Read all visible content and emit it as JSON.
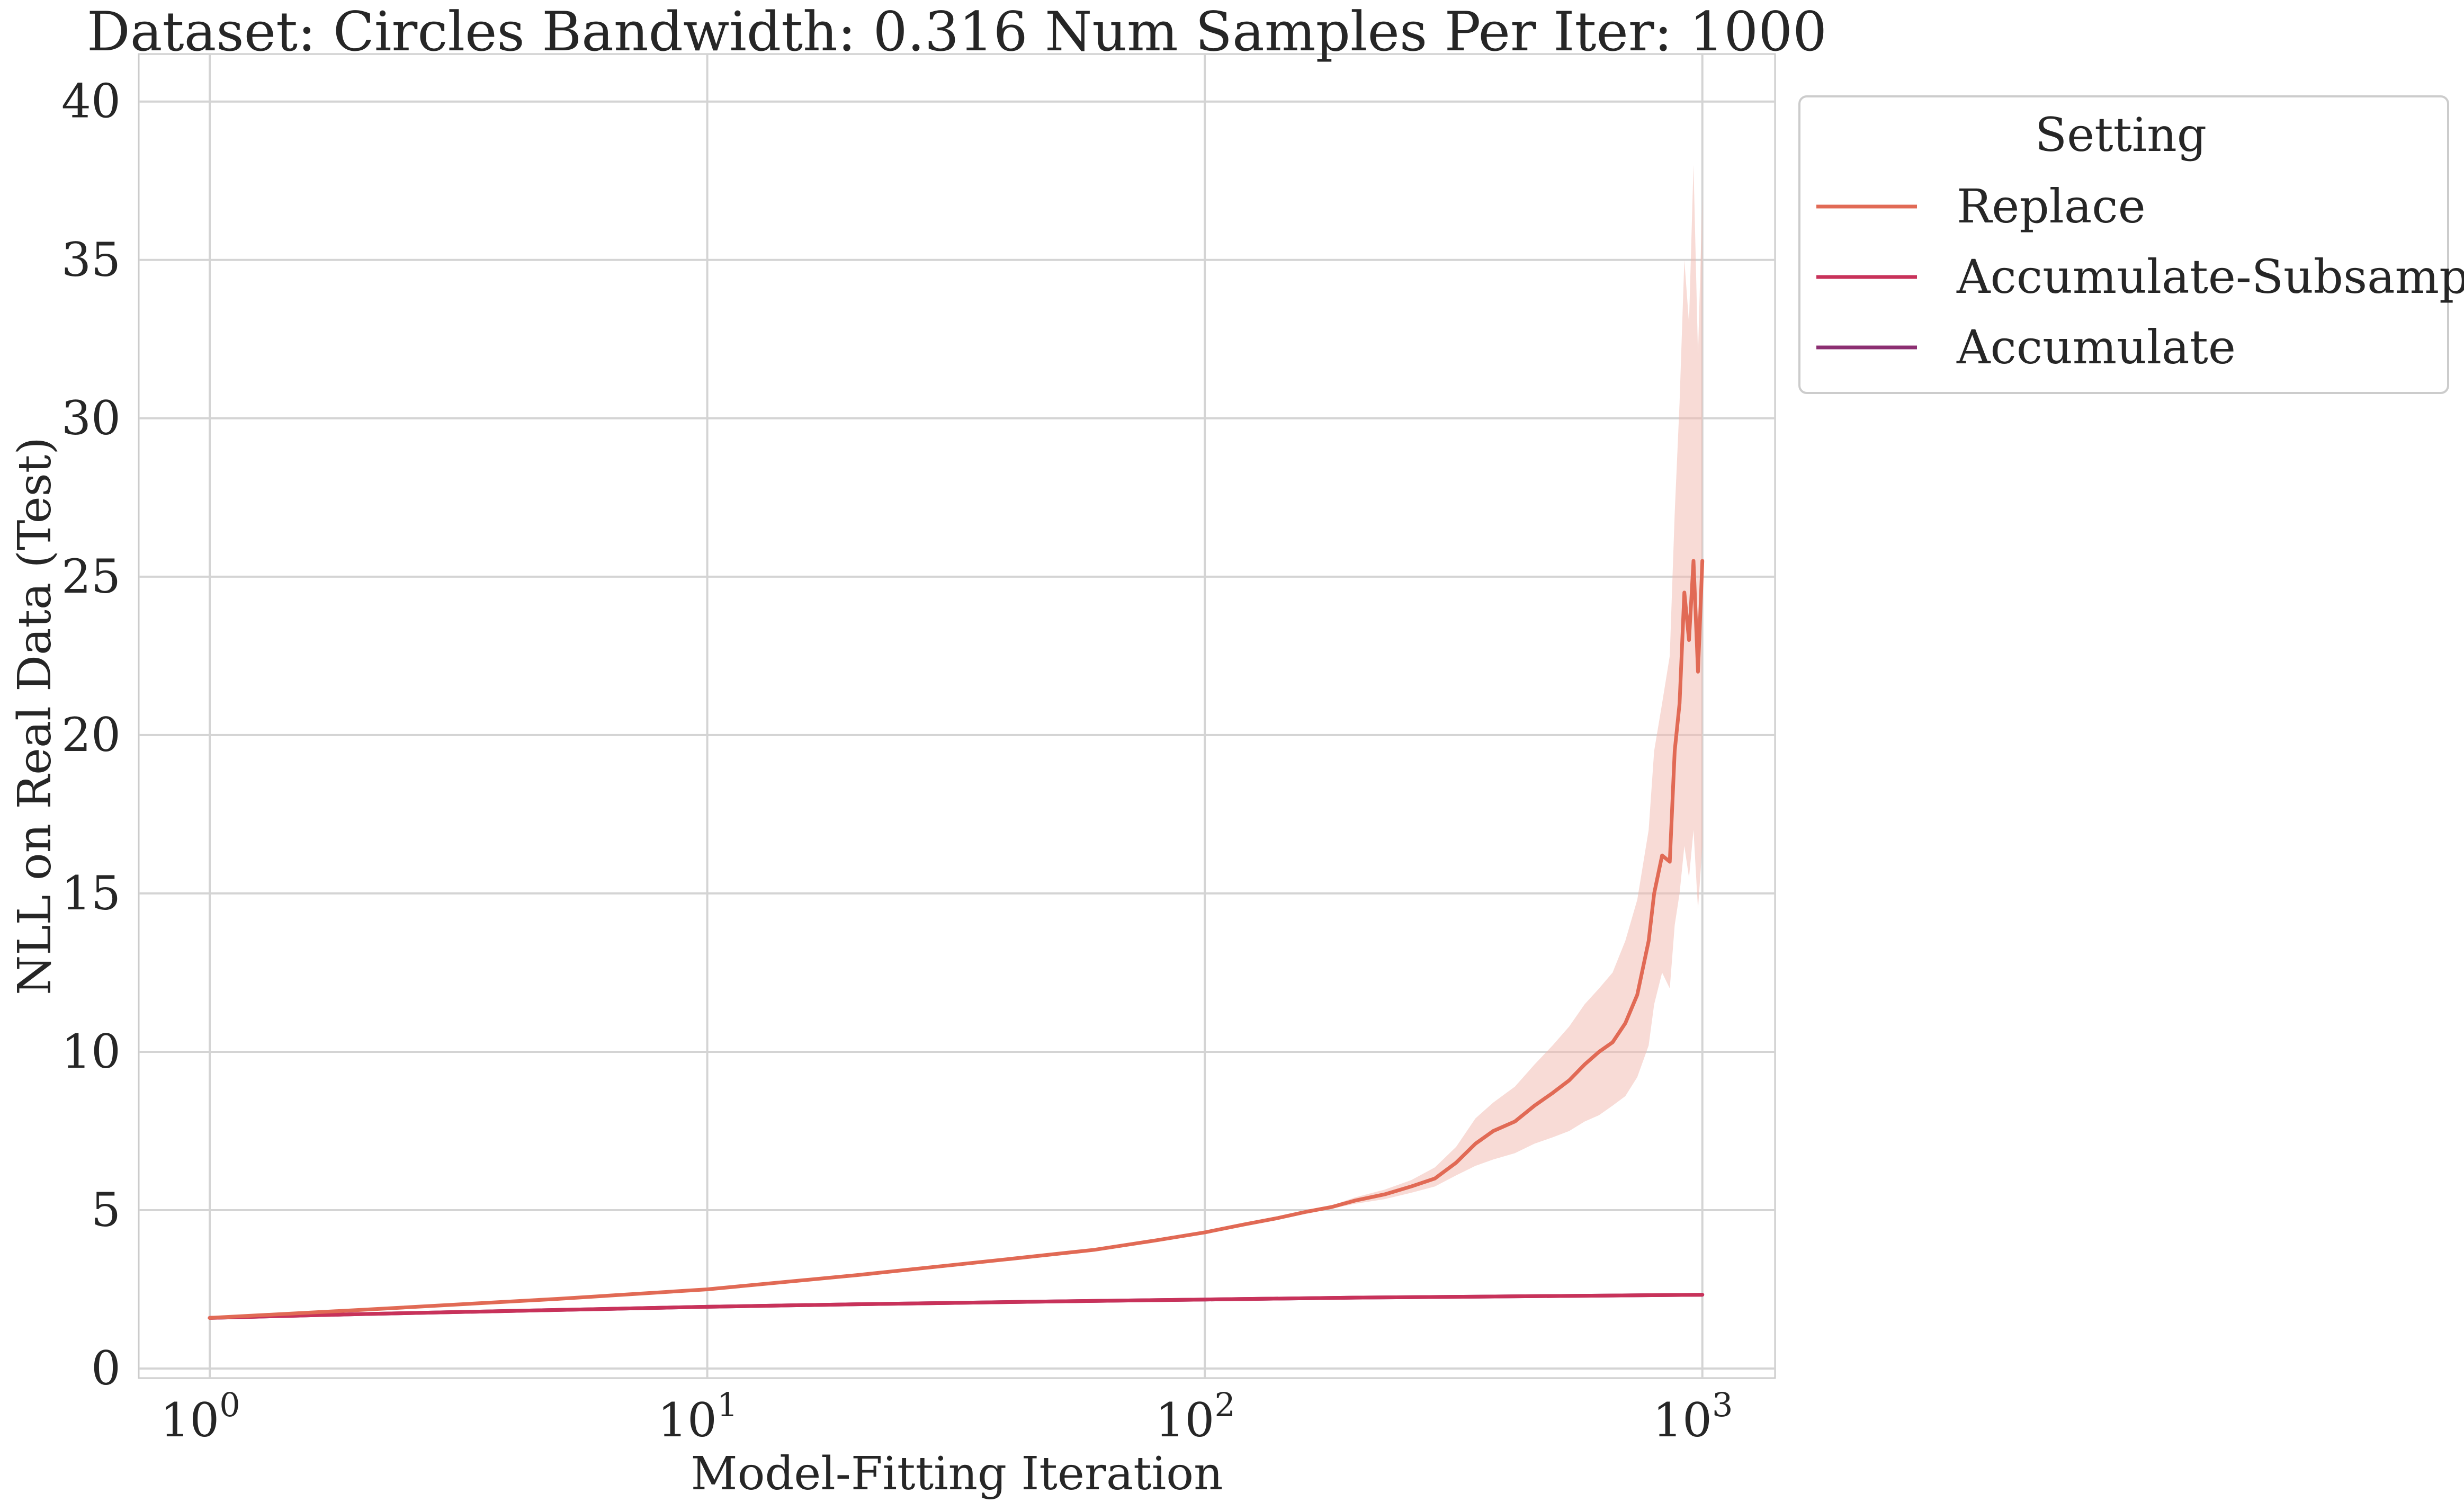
{
  "chart_data": {
    "type": "line",
    "title": "Dataset: Circles Bandwidth: 0.316 Num Samples Per Iter: 1000",
    "xlabel": "Model-Fitting Iteration",
    "ylabel": "NLL on Real Data (Test)",
    "x_scale": "log",
    "xlim": [
      0.72,
      1400
    ],
    "ylim": [
      -0.3,
      41.5
    ],
    "x_ticks": [
      1,
      10,
      100,
      1000
    ],
    "x_tick_labels": [
      {
        "base": "10",
        "exp": "0"
      },
      {
        "base": "10",
        "exp": "1"
      },
      {
        "base": "10",
        "exp": "2"
      },
      {
        "base": "10",
        "exp": "3"
      }
    ],
    "y_ticks": [
      0,
      5,
      10,
      15,
      20,
      25,
      30,
      35,
      40
    ],
    "y_tick_labels": [
      "0",
      "5",
      "10",
      "15",
      "20",
      "25",
      "30",
      "35",
      "40"
    ],
    "grid": true,
    "legend": {
      "title": "Setting",
      "placement": "outside-top-right"
    },
    "series": [
      {
        "name": "Replace",
        "color": "#e16a55",
        "band_color": "#f2b8ae",
        "x": [
          1,
          2,
          5,
          10,
          20,
          40,
          60,
          80,
          100,
          120,
          140,
          160,
          180,
          200,
          230,
          260,
          290,
          320,
          350,
          380,
          420,
          460,
          500,
          540,
          580,
          620,
          660,
          700,
          740,
          780,
          800,
          830,
          860,
          880,
          900,
          920,
          940,
          960,
          980,
          1000
        ],
        "y": [
          1.6,
          1.85,
          2.2,
          2.5,
          2.95,
          3.45,
          3.75,
          4.05,
          4.3,
          4.55,
          4.75,
          4.95,
          5.1,
          5.3,
          5.5,
          5.75,
          6.0,
          6.5,
          7.1,
          7.5,
          7.8,
          8.3,
          8.7,
          9.1,
          9.6,
          10.0,
          10.3,
          10.9,
          11.8,
          13.5,
          15.0,
          16.2,
          16.0,
          19.5,
          21.0,
          24.5,
          23.0,
          25.5,
          22.0,
          25.5
        ],
        "y_low": [
          1.6,
          1.85,
          2.2,
          2.5,
          2.95,
          3.45,
          3.75,
          4.05,
          4.27,
          4.5,
          4.7,
          4.9,
          5.05,
          5.2,
          5.35,
          5.55,
          5.75,
          6.1,
          6.4,
          6.6,
          6.8,
          7.1,
          7.3,
          7.5,
          7.8,
          8.0,
          8.3,
          8.6,
          9.2,
          10.2,
          11.5,
          12.5,
          12.0,
          14.0,
          15.0,
          16.5,
          15.5,
          17.0,
          14.5,
          16.5
        ],
        "y_high": [
          1.6,
          1.85,
          2.2,
          2.5,
          2.95,
          3.45,
          3.75,
          4.05,
          4.33,
          4.6,
          4.8,
          5.0,
          5.15,
          5.4,
          5.65,
          5.95,
          6.35,
          7.0,
          7.9,
          8.4,
          8.9,
          9.6,
          10.2,
          10.8,
          11.5,
          12.0,
          12.5,
          13.5,
          14.8,
          17.0,
          19.5,
          21.0,
          22.5,
          27.0,
          30.5,
          35.0,
          33.0,
          38.0,
          32.0,
          37.0
        ]
      },
      {
        "name": "Accumulate-Subsample",
        "color": "#c8325a",
        "x": [
          1,
          2,
          5,
          10,
          20,
          50,
          100,
          200,
          500,
          1000
        ],
        "y": [
          1.6,
          1.72,
          1.85,
          1.95,
          2.03,
          2.12,
          2.18,
          2.24,
          2.29,
          2.33
        ]
      },
      {
        "name": "Accumulate",
        "color": "#8c2f72",
        "x": [
          1,
          2,
          5,
          10,
          20,
          50,
          100,
          200,
          500,
          1000
        ],
        "y": [
          1.6,
          1.72,
          1.85,
          1.95,
          2.03,
          2.12,
          2.18,
          2.24,
          2.29,
          2.33
        ]
      }
    ]
  }
}
